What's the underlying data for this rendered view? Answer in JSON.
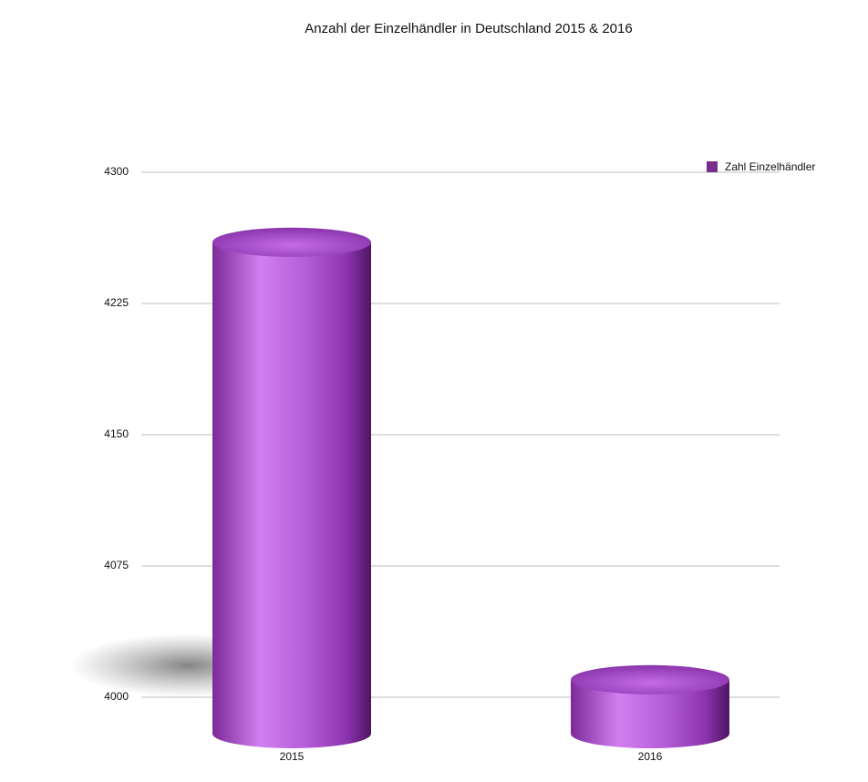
{
  "chart_data": {
    "type": "bar",
    "title": "Anzahl der Einzelhändler in Deutschland 2015 & 2016",
    "categories": [
      "2015",
      "2016"
    ],
    "series": [
      {
        "name": "Zahl Einzelhändler",
        "color": "#a64cc4",
        "values": [
          4260,
          4010
        ]
      }
    ],
    "ylim": [
      4000,
      4300
    ],
    "yticks": [
      4000,
      4075,
      4150,
      4225,
      4300
    ],
    "grid": true,
    "legend": "top-right"
  }
}
